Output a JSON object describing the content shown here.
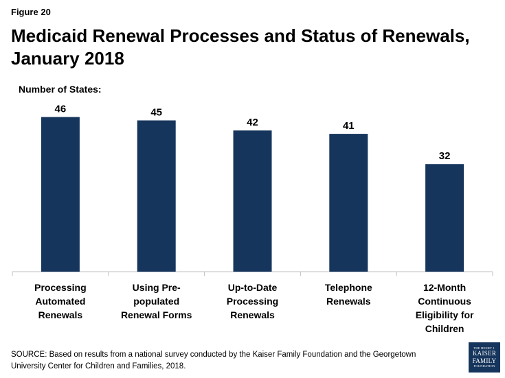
{
  "figure_label": "Figure 20",
  "title": "Medicaid Renewal Processes and Status of Renewals, January 2018",
  "y_caption": "Number of States:",
  "colors": {
    "bar": "#16355c",
    "axis": "#bfbfbf"
  },
  "chart_data": {
    "type": "bar",
    "categories": [
      "Processing Automated Renewals",
      "Using Pre-populated Renewal Forms",
      "Up-to-Date Processing Renewals",
      "Telephone Renewals",
      "12-Month Continuous Eligibility for Children"
    ],
    "category_lines": [
      [
        "Processing",
        "Automated",
        "Renewals"
      ],
      [
        "Using Pre-populated",
        "Renewal Forms"
      ],
      [
        "Up-to-Date",
        "Processing",
        "Renewals"
      ],
      [
        "Telephone",
        "Renewals"
      ],
      [
        "12-Month",
        "Continuous",
        "Eligibility for",
        "Children"
      ]
    ],
    "values": [
      46,
      45,
      42,
      41,
      32
    ],
    "data_labels": [
      "46",
      "45",
      "42",
      "41",
      "32"
    ],
    "ylim": [
      0,
      50
    ],
    "grid": false,
    "legend": "none"
  },
  "source": "SOURCE: Based on results from a national survey conducted by the Kaiser Family Foundation and the Georgetown University Center for Children and Families, 2018.",
  "logo": {
    "top": "THE HENRY J.",
    "line1": "KAISER",
    "line2": "FAMILY",
    "bottom": "FOUNDATION"
  }
}
